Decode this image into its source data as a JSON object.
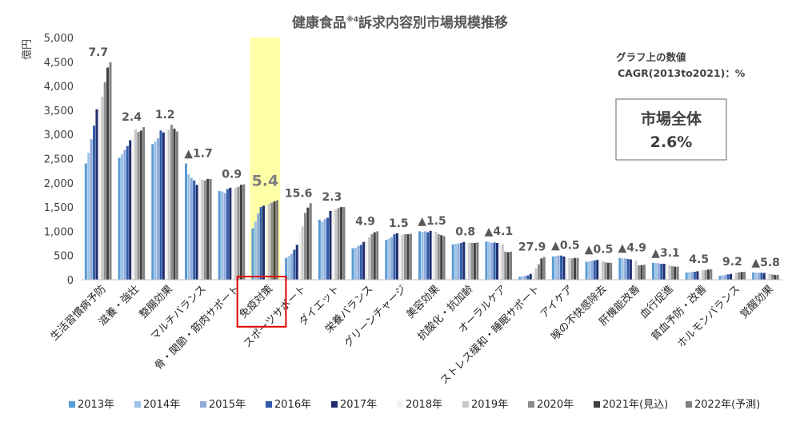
{
  "chart_data": {
    "type": "bar",
    "title": "健康食品",
    "title_superscript": "※4",
    "title_rest": "訴求内容別市場規模推移",
    "ylabel": "億円",
    "ylim": [
      0,
      5000
    ],
    "yticks": [
      "0",
      "500",
      "1,000",
      "1,500",
      "2,000",
      "2,500",
      "3,000",
      "3,500",
      "4,000",
      "4,500",
      "5,000"
    ],
    "grid": false,
    "legend_position": "bottom",
    "note_line1": "グラフ上の数値",
    "note_line2": "CAGR(2013to2021)：%",
    "total_box": {
      "label": "市場全体",
      "value": "2.6%"
    },
    "highlight_category_index": 5,
    "years": [
      "2013年",
      "2014年",
      "2015年",
      "2016年",
      "2017年",
      "2018年",
      "2019年",
      "2020年",
      "2021年(見込)",
      "2022年(予測)"
    ],
    "series_colors": [
      "#5b9bd5",
      "#9dc3e6",
      "#8faadc",
      "#2e5ca8",
      "#1f2d6e",
      "#f2f2f2",
      "#c9c9c9",
      "#8c8c8c",
      "#404040",
      "#808080"
    ],
    "categories": [
      {
        "name": "生活習慣病予防",
        "cagr": "7.7",
        "values": [
          2400,
          2620,
          2900,
          3180,
          3520,
          3570,
          3780,
          4080,
          4380,
          4490
        ]
      },
      {
        "name": "滋養・強壮",
        "cagr": "2.4",
        "values": [
          2520,
          2590,
          2680,
          2760,
          2880,
          2960,
          3100,
          3050,
          3080,
          3150
        ]
      },
      {
        "name": "整腸効果",
        "cagr": "1.2",
        "values": [
          2800,
          2860,
          2920,
          3080,
          3040,
          3100,
          3100,
          3200,
          3120,
          3060
        ]
      },
      {
        "name": "マルチバランス",
        "cagr": "▲1.7",
        "values": [
          2400,
          2180,
          2100,
          2050,
          1960,
          2100,
          2060,
          2050,
          2080,
          2080
        ]
      },
      {
        "name": "骨・関節・筋肉サポート",
        "cagr": "0.9",
        "values": [
          1830,
          1820,
          1790,
          1870,
          1900,
          1870,
          1900,
          1920,
          1960,
          1970
        ]
      },
      {
        "name": "免疫対策",
        "cagr": "5.4",
        "values": [
          1060,
          1200,
          1370,
          1500,
          1530,
          1520,
          1570,
          1590,
          1620,
          1640
        ]
      },
      {
        "name": "スポーツサポート",
        "cagr": "15.6",
        "values": [
          450,
          490,
          530,
          620,
          720,
          960,
          1100,
          1380,
          1490,
          1580
        ]
      },
      {
        "name": "ダイエット",
        "cagr": "2.3",
        "values": [
          1240,
          1200,
          1250,
          1280,
          1420,
          1420,
          1450,
          1480,
          1500,
          1500
        ]
      },
      {
        "name": "栄養バランス",
        "cagr": "4.9",
        "values": [
          650,
          660,
          700,
          720,
          780,
          820,
          880,
          940,
          980,
          1000
        ]
      },
      {
        "name": "グリーンチャージ",
        "cagr": "1.5",
        "values": [
          820,
          850,
          880,
          940,
          960,
          920,
          930,
          940,
          940,
          950
        ]
      },
      {
        "name": "美容効果",
        "cagr": "▲1.5",
        "values": [
          1000,
          990,
          1000,
          980,
          1010,
          1000,
          990,
          940,
          920,
          900
        ]
      },
      {
        "name": "抗酸化・抗加齢",
        "cagr": "0.8",
        "values": [
          730,
          740,
          750,
          760,
          780,
          760,
          760,
          760,
          760,
          770
        ]
      },
      {
        "name": "オーラルケア",
        "cagr": "▲4.1",
        "values": [
          790,
          780,
          760,
          770,
          760,
          750,
          730,
          580,
          570,
          580
        ]
      },
      {
        "name": "ストレス緩和・睡眠サポート",
        "cagr": "27.9",
        "values": [
          60,
          70,
          80,
          90,
          120,
          160,
          240,
          320,
          440,
          470
        ]
      },
      {
        "name": "アイケア",
        "cagr": "▲0.5",
        "values": [
          480,
          490,
          500,
          500,
          480,
          460,
          450,
          440,
          450,
          450
        ]
      },
      {
        "name": "喉の不快感除去",
        "cagr": "▲0.5",
        "values": [
          370,
          380,
          390,
          400,
          410,
          420,
          380,
          360,
          350,
          350
        ]
      },
      {
        "name": "肝機能改善",
        "cagr": "▲4.9",
        "values": [
          450,
          440,
          440,
          430,
          420,
          410,
          390,
          300,
          300,
          310
        ]
      },
      {
        "name": "血行促進",
        "cagr": "▲3.1",
        "values": [
          350,
          345,
          340,
          330,
          330,
          320,
          300,
          280,
          270,
          270
        ]
      },
      {
        "name": "貧血予防・改善",
        "cagr": "4.5",
        "values": [
          150,
          155,
          160,
          165,
          175,
          185,
          195,
          200,
          210,
          215
        ]
      },
      {
        "name": "ホルモンバランス",
        "cagr": "9.2",
        "values": [
          80,
          90,
          100,
          110,
          120,
          130,
          145,
          155,
          160,
          165
        ]
      },
      {
        "name": "覚醒効果",
        "cagr": "▲5.8",
        "values": [
          150,
          148,
          145,
          145,
          140,
          130,
          120,
          110,
          100,
          100
        ]
      }
    ]
  }
}
